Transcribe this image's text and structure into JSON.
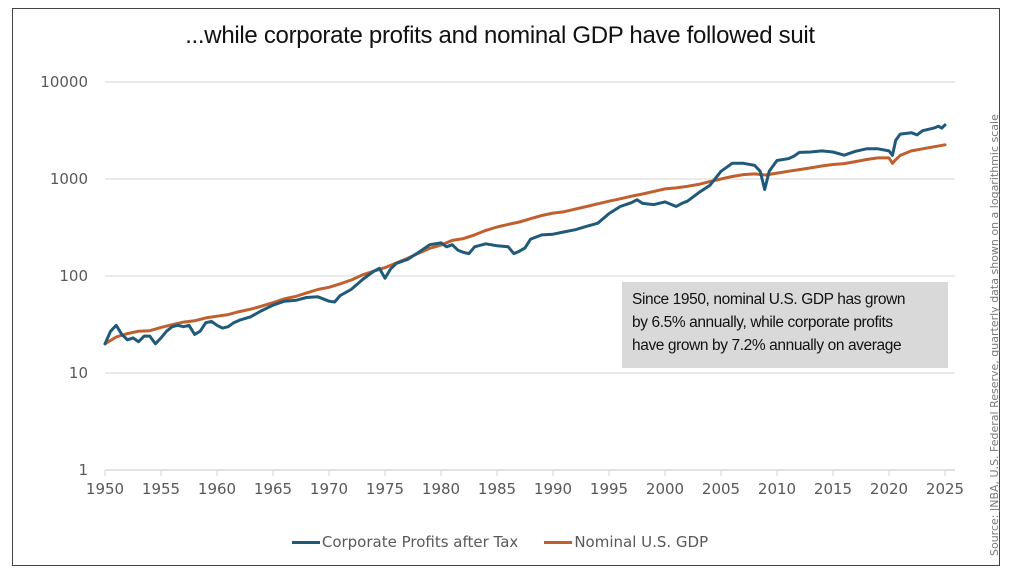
{
  "chart_data": {
    "type": "line",
    "title": "...while corporate profits and nominal GDP have followed suit",
    "xlabel": "",
    "ylabel": "",
    "yscale": "log",
    "ylim": [
      1,
      10000
    ],
    "xlim": [
      1950,
      2025
    ],
    "grid": true,
    "y_ticks": [
      1,
      10,
      100,
      1000,
      10000
    ],
    "y_tick_labels": [
      "1",
      "10",
      "100",
      "1000",
      "10000"
    ],
    "x_ticks": [
      1950,
      1955,
      1960,
      1965,
      1970,
      1975,
      1980,
      1985,
      1990,
      1995,
      2000,
      2005,
      2010,
      2015,
      2020,
      2025
    ],
    "x_tick_labels": [
      "1950",
      "1955",
      "1960",
      "1965",
      "1970",
      "1975",
      "1980",
      "1985",
      "1990",
      "1995",
      "2000",
      "2005",
      "2010",
      "2015",
      "2020",
      "2025"
    ],
    "legend_position": "bottom-center",
    "series": [
      {
        "name": "Corporate Profits after Tax",
        "color": "#1f5a7a",
        "x": [
          1950,
          1950.5,
          1951,
          1951.5,
          1952,
          1952.5,
          1953,
          1953.5,
          1954,
          1954.5,
          1955,
          1955.5,
          1956,
          1956.5,
          1957,
          1957.5,
          1958,
          1958.5,
          1959,
          1959.5,
          1960,
          1960.5,
          1961,
          1961.5,
          1962,
          1963,
          1964,
          1965,
          1966,
          1967,
          1968,
          1969,
          1970,
          1970.5,
          1971,
          1972,
          1973,
          1974,
          1974.5,
          1975,
          1975.5,
          1976,
          1977,
          1978,
          1979,
          1980,
          1980.5,
          1981,
          1981.5,
          1982,
          1982.5,
          1983,
          1984,
          1985,
          1986,
          1986.5,
          1987,
          1987.5,
          1988,
          1989,
          1990,
          1991,
          1992,
          1993,
          1994,
          1995,
          1996,
          1997,
          1997.5,
          1998,
          1999,
          2000,
          2001,
          2001.5,
          2002,
          2003,
          2004,
          2005,
          2006,
          2007,
          2008,
          2008.5,
          2008.9,
          2009.3,
          2010,
          2011,
          2011.5,
          2012,
          2013,
          2014,
          2015,
          2016,
          2017,
          2018,
          2019,
          2020,
          2020.3,
          2020.6,
          2021,
          2022,
          2022.5,
          2023,
          2024,
          2024.4,
          2024.7,
          2025
        ],
        "values": [
          20,
          27,
          31,
          25,
          22,
          23,
          21,
          24,
          24,
          20,
          23,
          27,
          30,
          31,
          30,
          31,
          25,
          27,
          33,
          34,
          31,
          29,
          30,
          33,
          35,
          38,
          44,
          50,
          55,
          56,
          60,
          61,
          55,
          54,
          63,
          73,
          92,
          112,
          120,
          95,
          118,
          135,
          148,
          175,
          210,
          220,
          200,
          210,
          185,
          175,
          170,
          200,
          215,
          205,
          200,
          170,
          180,
          195,
          240,
          265,
          270,
          285,
          300,
          325,
          350,
          440,
          520,
          570,
          610,
          560,
          545,
          580,
          520,
          560,
          590,
          720,
          860,
          1200,
          1450,
          1450,
          1380,
          1200,
          780,
          1200,
          1550,
          1620,
          1720,
          1880,
          1900,
          1950,
          1900,
          1760,
          1930,
          2050,
          2050,
          1950,
          1750,
          2500,
          2900,
          3000,
          2850,
          3150,
          3350,
          3500,
          3350,
          3600
        ]
      },
      {
        "name": "Nominal U.S. GDP",
        "color": "#c0602f",
        "x": [
          1950,
          1951,
          1952,
          1953,
          1954,
          1955,
          1956,
          1957,
          1958,
          1959,
          1960,
          1961,
          1962,
          1963,
          1964,
          1965,
          1966,
          1967,
          1968,
          1969,
          1970,
          1971,
          1972,
          1973,
          1974,
          1975,
          1976,
          1977,
          1978,
          1979,
          1980,
          1981,
          1982,
          1983,
          1984,
          1985,
          1986,
          1987,
          1988,
          1989,
          1990,
          1991,
          1992,
          1993,
          1994,
          1995,
          1996,
          1997,
          1998,
          1999,
          2000,
          2001,
          2002,
          2003,
          2004,
          2005,
          2006,
          2007,
          2008,
          2009,
          2010,
          2011,
          2012,
          2013,
          2014,
          2015,
          2016,
          2017,
          2018,
          2019,
          2020,
          2020.3,
          2020.6,
          2021,
          2022,
          2023,
          2024,
          2025
        ],
        "values": [
          20,
          23.5,
          25.5,
          27,
          27.3,
          29.5,
          31.5,
          33.5,
          34.5,
          37,
          38.5,
          40,
          43,
          45.5,
          49,
          53,
          58,
          61.5,
          67,
          72.5,
          76.5,
          83,
          91,
          103,
          112,
          122,
          136,
          152,
          172,
          193,
          208,
          233,
          243,
          265,
          295,
          320,
          340,
          360,
          390,
          420,
          445,
          460,
          490,
          520,
          555,
          590,
          625,
          665,
          700,
          745,
          790,
          810,
          840,
          880,
          940,
          1000,
          1060,
          1110,
          1130,
          1100,
          1150,
          1200,
          1250,
          1300,
          1360,
          1410,
          1440,
          1510,
          1590,
          1650,
          1650,
          1450,
          1580,
          1750,
          1950,
          2050,
          2150,
          2250
        ]
      }
    ],
    "annotation": {
      "lines": [
        "Since 1950, nominal U.S. GDP has grown",
        "by 6.5% annually, while corporate profits",
        "have grown by 7.2% annually on average"
      ],
      "background": "#d9d9d9"
    },
    "source_note": "Source: JNBA, U.S. Federal Reserve, quarterly data shown on a logarithmic scale"
  }
}
